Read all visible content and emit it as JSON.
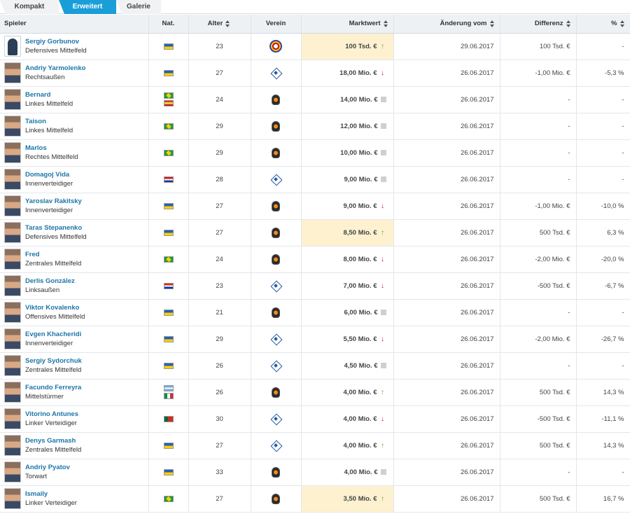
{
  "tabs": [
    {
      "label": "Kompakt",
      "active": false
    },
    {
      "label": "Erweitert",
      "active": true
    },
    {
      "label": "Galerie",
      "active": false
    }
  ],
  "columns": {
    "spieler": "Spieler",
    "nat": "Nat.",
    "alter": "Alter",
    "verein": "Verein",
    "marktwert": "Marktwert",
    "aenderung": "Änderung vom",
    "differenz": "Differenz",
    "prozent": "%"
  },
  "club_icons": {
    "dynamo": "dynamo-kyiv-crest-icon",
    "shakhtar": "shakhtar-donetsk-crest-icon",
    "zorya": "zorya-luhansk-crest-icon"
  },
  "trend_icons": {
    "up": "arrow-up-icon",
    "down": "arrow-down-icon",
    "flat": "unchanged-square-icon"
  },
  "colors": {
    "tab_active": "#1a9ed8",
    "link": "#1d75a8",
    "positive": "#4a9b2c",
    "negative": "#b2151b",
    "highlight": "#fdf1d0"
  },
  "players": [
    {
      "name": "Sergiy Gorbunov",
      "position": "Defensives Mittelfeld",
      "nat": [
        "UA"
      ],
      "age": "23",
      "club": "zorya",
      "value": "100 Tsd. €",
      "trend": "up",
      "date": "29.06.2017",
      "diff": "100 Tsd. €",
      "pct": "-",
      "highlight": true,
      "portrait": "blank"
    },
    {
      "name": "Andriy Yarmolenko",
      "position": "Rechtsaußen",
      "nat": [
        "UA"
      ],
      "age": "27",
      "club": "dynamo",
      "value": "18,00 Mio. €",
      "trend": "down",
      "date": "26.06.2017",
      "diff": "-1,00 Mio. €",
      "pct": "-5,3 %",
      "highlight": false
    },
    {
      "name": "Bernard",
      "position": "Linkes Mittelfeld",
      "nat": [
        "BR",
        "ES"
      ],
      "age": "24",
      "club": "shakhtar",
      "value": "14,00 Mio. €",
      "trend": "flat",
      "date": "26.06.2017",
      "diff": "-",
      "pct": "-",
      "highlight": false
    },
    {
      "name": "Taison",
      "position": "Linkes Mittelfeld",
      "nat": [
        "BR"
      ],
      "age": "29",
      "club": "shakhtar",
      "value": "12,00 Mio. €",
      "trend": "flat",
      "date": "26.06.2017",
      "diff": "-",
      "pct": "-",
      "highlight": false
    },
    {
      "name": "Marlos",
      "position": "Rechtes Mittelfeld",
      "nat": [
        "BR"
      ],
      "age": "29",
      "club": "shakhtar",
      "value": "10,00 Mio. €",
      "trend": "flat",
      "date": "26.06.2017",
      "diff": "-",
      "pct": "-",
      "highlight": false
    },
    {
      "name": "Domagoj Vida",
      "position": "Innenverteidiger",
      "nat": [
        "HR"
      ],
      "age": "28",
      "club": "dynamo",
      "value": "9,00 Mio. €",
      "trend": "flat",
      "date": "26.06.2017",
      "diff": "-",
      "pct": "-",
      "highlight": false
    },
    {
      "name": "Yaroslav Rakitsky",
      "position": "Innenverteidiger",
      "nat": [
        "UA"
      ],
      "age": "27",
      "club": "shakhtar",
      "value": "9,00 Mio. €",
      "trend": "down",
      "date": "26.06.2017",
      "diff": "-1,00 Mio. €",
      "pct": "-10,0 %",
      "highlight": false
    },
    {
      "name": "Taras Stepanenko",
      "position": "Defensives Mittelfeld",
      "nat": [
        "UA"
      ],
      "age": "27",
      "club": "shakhtar",
      "value": "8,50 Mio. €",
      "trend": "up",
      "date": "26.06.2017",
      "diff": "500 Tsd. €",
      "pct": "6,3 %",
      "highlight": true
    },
    {
      "name": "Fred",
      "position": "Zentrales Mittelfeld",
      "nat": [
        "BR"
      ],
      "age": "24",
      "club": "shakhtar",
      "value": "8,00 Mio. €",
      "trend": "down",
      "date": "26.06.2017",
      "diff": "-2,00 Mio. €",
      "pct": "-20,0 %",
      "highlight": false
    },
    {
      "name": "Derlis González",
      "position": "Linksaußen",
      "nat": [
        "PY"
      ],
      "age": "23",
      "club": "dynamo",
      "value": "7,00 Mio. €",
      "trend": "down",
      "date": "26.06.2017",
      "diff": "-500 Tsd. €",
      "pct": "-6,7 %",
      "highlight": false
    },
    {
      "name": "Viktor Kovalenko",
      "position": "Offensives Mittelfeld",
      "nat": [
        "UA"
      ],
      "age": "21",
      "club": "shakhtar",
      "value": "6,00 Mio. €",
      "trend": "flat",
      "date": "26.06.2017",
      "diff": "-",
      "pct": "-",
      "highlight": false
    },
    {
      "name": "Evgen Khacheridi",
      "position": "Innenverteidiger",
      "nat": [
        "UA"
      ],
      "age": "29",
      "club": "dynamo",
      "value": "5,50 Mio. €",
      "trend": "down",
      "date": "26.06.2017",
      "diff": "-2,00 Mio. €",
      "pct": "-26,7 %",
      "highlight": false
    },
    {
      "name": "Sergiy Sydorchuk",
      "position": "Zentrales Mittelfeld",
      "nat": [
        "UA"
      ],
      "age": "26",
      "club": "dynamo",
      "value": "4,50 Mio. €",
      "trend": "flat",
      "date": "26.06.2017",
      "diff": "-",
      "pct": "-",
      "highlight": false
    },
    {
      "name": "Facundo Ferreyra",
      "position": "Mittelstürmer",
      "nat": [
        "AR",
        "IT"
      ],
      "age": "26",
      "club": "shakhtar",
      "value": "4,00 Mio. €",
      "trend": "up",
      "date": "26.06.2017",
      "diff": "500 Tsd. €",
      "pct": "14,3 %",
      "highlight": false
    },
    {
      "name": "Vitorino Antunes",
      "position": "Linker Verteidiger",
      "nat": [
        "PT"
      ],
      "age": "30",
      "club": "dynamo",
      "value": "4,00 Mio. €",
      "trend": "down",
      "date": "26.06.2017",
      "diff": "-500 Tsd. €",
      "pct": "-11,1 %",
      "highlight": false
    },
    {
      "name": "Denys Garmash",
      "position": "Zentrales Mittelfeld",
      "nat": [
        "UA"
      ],
      "age": "27",
      "club": "dynamo",
      "value": "4,00 Mio. €",
      "trend": "up",
      "date": "26.06.2017",
      "diff": "500 Tsd. €",
      "pct": "14,3 %",
      "highlight": false
    },
    {
      "name": "Andriy Pyatov",
      "position": "Torwart",
      "nat": [
        "UA"
      ],
      "age": "33",
      "club": "shakhtar",
      "value": "4,00 Mio. €",
      "trend": "flat",
      "date": "26.06.2017",
      "diff": "-",
      "pct": "-",
      "highlight": false
    },
    {
      "name": "Ismaily",
      "position": "Linker Verteidiger",
      "nat": [
        "BR"
      ],
      "age": "27",
      "club": "shakhtar",
      "value": "3,50 Mio. €",
      "trend": "up",
      "date": "26.06.2017",
      "diff": "500 Tsd. €",
      "pct": "16,7 %",
      "highlight": true
    }
  ]
}
